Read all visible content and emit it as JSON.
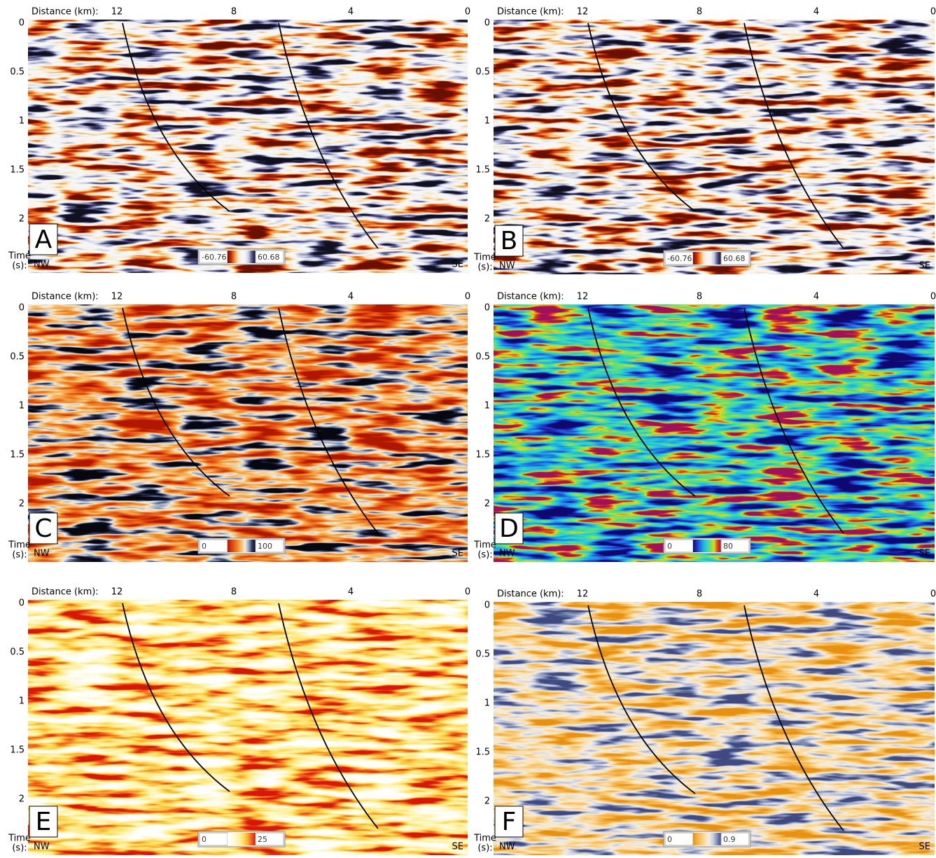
{
  "panels": [
    {
      "letter": "A",
      "distance_label": "Distance (km):",
      "distance_ticks": [
        "12",
        "8",
        "4",
        "0"
      ],
      "time_ticks": [
        "0",
        "0.5",
        "1",
        "1.5",
        "2"
      ],
      "time_label": [
        "Time",
        "(s):"
      ],
      "left_direction": "NW",
      "right_direction": "SE",
      "colorbar_min": "-60.76",
      "colorbar_max": "60.68",
      "colormap": [
        "#6a1000",
        "#c8280a",
        "#f09030",
        "#f8e8c0",
        "#f6f6f6",
        "#f6f6f6",
        "#c8cce0",
        "#50508a",
        "#101020"
      ]
    },
    {
      "letter": "B",
      "distance_label": "Distance (km):",
      "distance_ticks": [
        "12",
        "8",
        "4",
        "0"
      ],
      "time_ticks": [
        "0",
        "0.5",
        "1",
        "1.5",
        "2"
      ],
      "time_label": [
        "Time",
        "(s):"
      ],
      "left_direction": "NW",
      "right_direction": "SE",
      "colorbar_min": "-60.76",
      "colorbar_max": "60.68",
      "colormap": [
        "#6a1000",
        "#c8280a",
        "#f09030",
        "#f8e8c0",
        "#f6f6f6",
        "#f6f6f6",
        "#c8cce0",
        "#50508a",
        "#101020"
      ]
    },
    {
      "letter": "C",
      "distance_label": "Distance (km):",
      "distance_ticks": [
        "12",
        "8",
        "4",
        "0"
      ],
      "time_ticks": [
        "0",
        "0.5",
        "1",
        "1.5",
        "2"
      ],
      "time_label": [
        "Time",
        "(s):"
      ],
      "left_direction": "NW",
      "right_direction": "SE",
      "colorbar_min": "0",
      "colorbar_max": "100",
      "colormap": [
        "#b01800",
        "#d83808",
        "#e86018",
        "#f09030",
        "#f8c070",
        "#f4ecd8",
        "#98a8c8",
        "#303860",
        "#080810"
      ]
    },
    {
      "letter": "D",
      "distance_label": "Distance (km):",
      "distance_ticks": [
        "12",
        "8",
        "4",
        "0"
      ],
      "time_ticks": [
        "0",
        "0.5",
        "1",
        "1.5",
        "2"
      ],
      "time_label": [
        "Time",
        "(s):"
      ],
      "left_direction": "NW",
      "right_direction": "SE",
      "colorbar_min": "0",
      "colorbar_max": "80",
      "colormap": [
        "#100870",
        "#2030c0",
        "#2070e0",
        "#20b0e8",
        "#30d8c0",
        "#70e060",
        "#e0d820",
        "#e04010",
        "#a01060"
      ]
    },
    {
      "letter": "E",
      "distance_label": "Distance (km):",
      "distance_ticks": [
        "12",
        "8",
        "4",
        "0"
      ],
      "time_ticks": [
        "0",
        "0.5",
        "1",
        "1.5",
        "2"
      ],
      "time_label": [
        "Time",
        "(s):"
      ],
      "left_direction": "NW",
      "right_direction": "SE",
      "colorbar_min": "0",
      "colorbar_max": "25",
      "colormap": [
        "#ffffff",
        "#fffdf0",
        "#fff8c8",
        "#fff0a0",
        "#ffe060",
        "#fbb030",
        "#f06020",
        "#d81808"
      ]
    },
    {
      "letter": "F",
      "distance_label": "Distance (km):",
      "distance_ticks": [
        "12",
        "8",
        "4",
        "0"
      ],
      "time_ticks": [
        "0",
        "0.5",
        "1",
        "1.5",
        "2"
      ],
      "time_label": [
        "Time",
        "(s):"
      ],
      "left_direction": "NW",
      "right_direction": "SE",
      "colorbar_min": "0",
      "colorbar_max": "0.9",
      "colormap": [
        "#e89010",
        "#f4b040",
        "#f8c870",
        "#fbe0a8",
        "#f2eee6",
        "#c8cce0",
        "#8090b8",
        "#404a80"
      ]
    }
  ]
}
